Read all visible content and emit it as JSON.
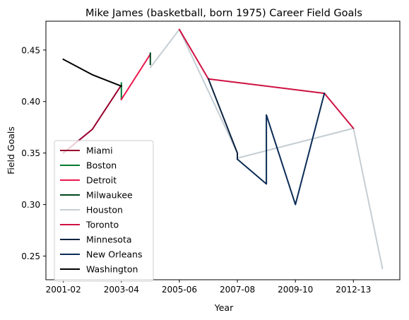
{
  "chart_data": {
    "type": "line",
    "title": "Mike James (basketball, born 1975) Career Field Goals",
    "xlabel": "Year",
    "ylabel": "Field Goals",
    "xlim": [
      -0.6,
      11.6
    ],
    "ylim": [
      0.227,
      0.478
    ],
    "x_ticks": [
      {
        "pos": 0,
        "label": "2001-02"
      },
      {
        "pos": 2,
        "label": "2003-04"
      },
      {
        "pos": 4,
        "label": "2005-06"
      },
      {
        "pos": 6,
        "label": "2007-08"
      },
      {
        "pos": 8,
        "label": "2009-10"
      },
      {
        "pos": 10,
        "label": "2012-13"
      }
    ],
    "y_ticks": [
      0.25,
      0.3,
      0.35,
      0.4,
      0.45
    ],
    "y_tick_labels": [
      "0.25",
      "0.30",
      "0.35",
      "0.40",
      "0.45"
    ],
    "grid": false,
    "legend_position": "lower-left",
    "series": [
      {
        "name": "Miami",
        "color": "#98002E",
        "points": [
          [
            0,
            0.35
          ],
          [
            1,
            0.373
          ],
          [
            2,
            0.416
          ]
        ]
      },
      {
        "name": "Boston",
        "color": "#007A33",
        "points": [
          [
            2,
            0.402
          ],
          [
            2,
            0.418
          ]
        ]
      },
      {
        "name": "Detroit",
        "color": "#ED174C",
        "points": [
          [
            2,
            0.402
          ],
          [
            3,
            0.446
          ]
        ]
      },
      {
        "name": "Milwaukee",
        "color": "#00471B",
        "points": [
          [
            3,
            0.436
          ],
          [
            3,
            0.447
          ]
        ]
      },
      {
        "name": "Houston",
        "color": "#C4CED4",
        "points": [
          [
            3,
            0.433
          ],
          [
            4,
            0.47
          ],
          [
            6,
            0.35
          ],
          [
            6,
            0.345
          ],
          [
            10,
            0.374
          ],
          [
            11,
            0.238
          ]
        ]
      },
      {
        "name": "Toronto",
        "color": "#CE1141",
        "points": [
          [
            4,
            0.47
          ],
          [
            5,
            0.422
          ],
          [
            9,
            0.408
          ],
          [
            10,
            0.374
          ]
        ]
      },
      {
        "name": "Minnesota",
        "color": "#0C2340",
        "points": [
          [
            5,
            0.422
          ],
          [
            6,
            0.35
          ],
          [
            6,
            0.345
          ]
        ]
      },
      {
        "name": "New Orleans",
        "color": "#0C2C56",
        "points": [
          [
            6,
            0.344
          ],
          [
            7,
            0.32
          ],
          [
            7,
            0.387
          ],
          [
            8,
            0.3
          ],
          [
            9,
            0.408
          ]
        ]
      },
      {
        "name": "Washington",
        "color": "#000000",
        "points": [
          [
            0,
            0.441
          ],
          [
            1,
            0.426
          ],
          [
            2,
            0.415
          ]
        ]
      }
    ]
  }
}
